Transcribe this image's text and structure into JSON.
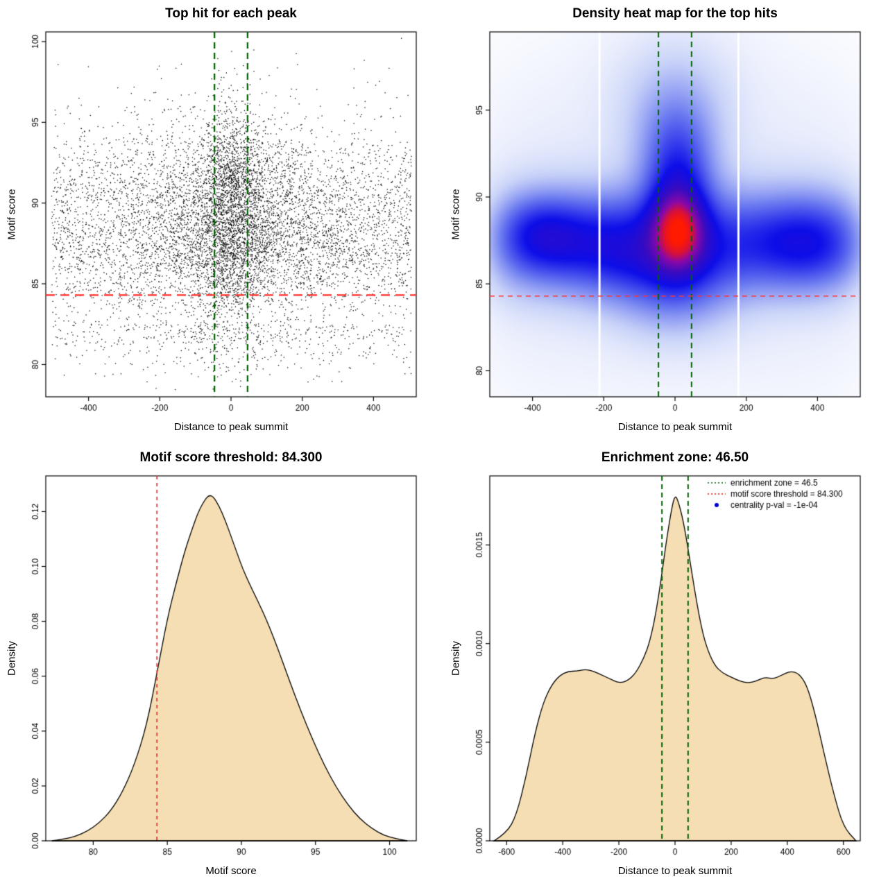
{
  "page": {
    "background": "#ffffff"
  },
  "chart_data": [
    {
      "type": "scatter",
      "title": "Top hit for each peak",
      "xlabel": "Distance to peak summit",
      "ylabel": "Motif score",
      "xlim": [
        -520,
        520
      ],
      "ylim": [
        78,
        100.6
      ],
      "xticks": [
        -400,
        -200,
        0,
        200,
        400
      ],
      "xtick_labels": [
        "-400",
        "-200",
        "0",
        "200",
        "400"
      ],
      "yticks": [
        80,
        85,
        90,
        95,
        100
      ],
      "ytick_labels": [
        "80",
        "85",
        "90",
        "95",
        "100"
      ],
      "point_color": "#000000",
      "point_cloud": {
        "seed": 1337,
        "n_background": 7200,
        "n_center": 1700,
        "uniform_fraction": 0.62,
        "x_sigma": 150,
        "center_x_sigma": 48,
        "y_mean": 88,
        "y_sigma": 2.7,
        "upper_tail_fraction": 0.12,
        "lower_tail_fraction": 0.06
      },
      "hlines": [
        {
          "y": 84.3,
          "color": "#FF2A2A",
          "dash": [
            13,
            8
          ],
          "width": 2.2
        }
      ],
      "vlines": [
        {
          "x": -46.5,
          "color": "#006400",
          "dash": [
            9,
            6
          ],
          "width": 2.3
        },
        {
          "x": 46.5,
          "color": "#006400",
          "dash": [
            9,
            6
          ],
          "width": 2.3
        }
      ]
    },
    {
      "type": "heatmap",
      "title": "Density heat map for the top hits",
      "xlabel": "Distance to peak summit",
      "ylabel": "Motif score",
      "xlim": [
        -520,
        520
      ],
      "ylim": [
        78.5,
        99.5
      ],
      "xticks": [
        -400,
        -200,
        0,
        200,
        400
      ],
      "xtick_labels": [
        "-400",
        "-200",
        "0",
        "200",
        "400"
      ],
      "yticks": [
        80,
        85,
        90,
        95
      ],
      "ytick_labels": [
        "80",
        "85",
        "90",
        "95"
      ],
      "colormap": [
        [
          0,
          "#ffffff"
        ],
        [
          0.13,
          "#c9d3f8"
        ],
        [
          0.3,
          "#6a79f0"
        ],
        [
          0.5,
          "#0d0de8"
        ],
        [
          0.66,
          "#3a0bbf"
        ],
        [
          0.8,
          "#8a08a8"
        ],
        [
          0.9,
          "#d8103a"
        ],
        [
          1,
          "#ff1a00"
        ]
      ],
      "density_components": [
        {
          "kind": "band",
          "x": 0,
          "xw": 480,
          "xp": 5,
          "y": 87.4,
          "sy": 2.05,
          "w": 0.6
        },
        {
          "kind": "band",
          "x": 0,
          "xw": 510,
          "xp": 3,
          "y": 88.0,
          "sy": 6.5,
          "w": 0.12
        },
        {
          "kind": "blob",
          "x": -370,
          "y": 87.9,
          "sx": 80,
          "sy": 1.5,
          "w": 0.35
        },
        {
          "kind": "blob",
          "x": -180,
          "y": 86.9,
          "sx": 110,
          "sy": 1.9,
          "w": 0.24
        },
        {
          "kind": "blob",
          "x": 10,
          "y": 88.1,
          "sx": 52,
          "sy": 1.6,
          "w": 1.0
        },
        {
          "kind": "blob",
          "x": 8,
          "y": 91.3,
          "sx": 68,
          "sy": 2.2,
          "w": 0.58
        },
        {
          "kind": "blob",
          "x": 0,
          "y": 94.5,
          "sx": 95,
          "sy": 2.4,
          "w": 0.25
        },
        {
          "kind": "blob",
          "x": 0,
          "y": 85.0,
          "sx": 115,
          "sy": 2.1,
          "w": 0.38
        },
        {
          "kind": "blob",
          "x": 370,
          "y": 87.3,
          "sx": 110,
          "sy": 1.8,
          "w": 0.3
        },
        {
          "kind": "blob",
          "x": 0,
          "y": 97.0,
          "sx": 150,
          "sy": 2.6,
          "w": 0.08
        }
      ],
      "white_gap_lines": [
        -212,
        178
      ],
      "hlines": [
        {
          "y": 84.3,
          "color": "#FF3333",
          "dash": [
            7,
            6
          ],
          "width": 1.6
        }
      ],
      "vlines": [
        {
          "x": -46.5,
          "color": "#006400",
          "dash": [
            8,
            6
          ],
          "width": 2
        },
        {
          "x": 46.5,
          "color": "#006400",
          "dash": [
            8,
            6
          ],
          "width": 2
        }
      ]
    },
    {
      "type": "density",
      "title": "Motif score threshold: 84.300",
      "xlabel": "Motif score",
      "ylabel": "Density",
      "fill": "#F5DEB3",
      "line": "#000000",
      "xlim": [
        76.8,
        101.8
      ],
      "ylim": [
        0,
        0.133
      ],
      "xticks": [
        80,
        85,
        90,
        95,
        100
      ],
      "xtick_labels": [
        "80",
        "85",
        "90",
        "95",
        "100"
      ],
      "yticks": [
        0,
        0.02,
        0.04,
        0.06,
        0.08,
        0.1,
        0.12
      ],
      "ytick_labels": [
        "0.00",
        "0.02",
        "0.04",
        "0.06",
        "0.08",
        "0.10",
        "0.12"
      ],
      "x": [
        77.2,
        78,
        78.8,
        79.6,
        80.4,
        81.2,
        82,
        82.8,
        83.6,
        84.3,
        85,
        85.6,
        86.2,
        86.7,
        87.1,
        87.5,
        87.8,
        88.1,
        88.5,
        88.9,
        89.3,
        89.7,
        90.1,
        90.6,
        91.1,
        91.7,
        92.4,
        93.2,
        94,
        94.8,
        95.6,
        96.4,
        97.2,
        98,
        98.8,
        99.6,
        100.4,
        101.2
      ],
      "y": [
        0,
        0.0006,
        0.0016,
        0.0035,
        0.0065,
        0.011,
        0.018,
        0.028,
        0.042,
        0.061,
        0.081,
        0.094,
        0.106,
        0.114,
        0.12,
        0.124,
        0.126,
        0.1255,
        0.122,
        0.117,
        0.111,
        0.105,
        0.099,
        0.093,
        0.0875,
        0.0805,
        0.071,
        0.059,
        0.0475,
        0.037,
        0.0275,
        0.0195,
        0.013,
        0.008,
        0.0045,
        0.002,
        0.0008,
        0
      ],
      "vlines": [
        {
          "x": 84.3,
          "color": "#E03535",
          "dash": [
            5,
            5
          ],
          "width": 1.7
        }
      ]
    },
    {
      "type": "density",
      "title": "Enrichment zone: 46.50",
      "xlabel": "Distance to peak summit",
      "ylabel": "Density",
      "fill": "#F5DEB3",
      "line": "#000000",
      "xlim": [
        -660,
        660
      ],
      "ylim": [
        0,
        0.00185
      ],
      "xticks": [
        -600,
        -400,
        -200,
        0,
        200,
        400,
        600
      ],
      "xtick_labels": [
        "-600",
        "-400",
        "-200",
        "0",
        "200",
        "400",
        "600"
      ],
      "yticks": [
        0,
        0.0005,
        0.001,
        0.0015
      ],
      "ytick_labels": [
        "0.0000",
        "0.0005",
        "0.0010",
        "0.0015"
      ],
      "x": [
        -645,
        -600,
        -565,
        -530,
        -500,
        -470,
        -440,
        -410,
        -380,
        -350,
        -320,
        -290,
        -260,
        -230,
        -200,
        -170,
        -140,
        -110,
        -90,
        -70,
        -50,
        -30,
        -10,
        0,
        10,
        30,
        50,
        70,
        90,
        110,
        140,
        170,
        200,
        230,
        260,
        290,
        320,
        350,
        380,
        410,
        440,
        470,
        500,
        530,
        565,
        600,
        645
      ],
      "y": [
        0,
        4e-05,
        0.00013,
        0.00033,
        0.00054,
        0.0007,
        0.00079,
        0.00084,
        0.00086,
        0.00086,
        0.00087,
        0.00086,
        0.00084,
        0.00082,
        0.0008,
        0.00081,
        0.00085,
        0.00093,
        0.00101,
        0.00114,
        0.00132,
        0.00153,
        0.0017,
        0.00175,
        0.00173,
        0.00162,
        0.00145,
        0.00127,
        0.00111,
        0.00099,
        0.00089,
        0.00085,
        0.00083,
        0.00081,
        0.0008,
        0.00081,
        0.00083,
        0.00082,
        0.00084,
        0.00086,
        0.00085,
        0.00079,
        0.00064,
        0.00045,
        0.00024,
        7e-05,
        0
      ],
      "vlines": [
        {
          "x": -46.5,
          "color": "#006400",
          "dash": [
            7,
            5
          ],
          "width": 2
        },
        {
          "x": 46.5,
          "color": "#006400",
          "dash": [
            7,
            5
          ],
          "width": 2
        }
      ],
      "legend": {
        "items": [
          {
            "marker": "dotted-line",
            "color": "#006400",
            "label": "enrichment zone = 46.5"
          },
          {
            "marker": "dotted-line",
            "color": "#FF0000",
            "label": "motif score threshold = 84.300"
          },
          {
            "marker": "dot",
            "color": "#0000CC",
            "label": "centrality p-val = -1e-04"
          }
        ]
      }
    }
  ]
}
